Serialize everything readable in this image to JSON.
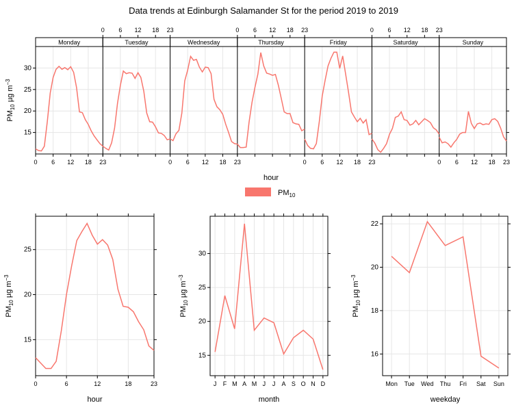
{
  "title": "Data trends at Edinburgh Salamander St for the period 2019 to 2019",
  "legend": {
    "label": "PM",
    "label_sub": "10",
    "color": "#F8766D"
  },
  "ylabel": {
    "prefix": "PM",
    "sub": "10",
    "unit": " µg m",
    "sup": "−3"
  },
  "colors": {
    "series": "#F8766D",
    "strip": "#ffffff",
    "grid": "#e6e6e6"
  },
  "chart_data": [
    {
      "id": "day-hour",
      "type": "line",
      "xlabel": "hour",
      "x_ticks": [
        0,
        6,
        12,
        18,
        23
      ],
      "x_range": [
        0,
        23
      ],
      "ylim": [
        10,
        35
      ],
      "y_ticks": [
        15,
        20,
        25,
        30
      ],
      "panels": [
        {
          "day": "Monday",
          "values": [
            11.2,
            10.8,
            10.7,
            11.8,
            17.5,
            24.2,
            27.8,
            29.7,
            30.4,
            29.7,
            30.1,
            29.6,
            30.3,
            29.0,
            25.5,
            19.8,
            19.6,
            18.0,
            16.9,
            15.4,
            14.2,
            13.3,
            12.4,
            11.8
          ]
        },
        {
          "day": "Tuesday",
          "values": [
            11.8,
            11.3,
            10.9,
            12.6,
            16.0,
            21.8,
            26.0,
            29.3,
            28.7,
            28.9,
            28.8,
            27.6,
            28.9,
            27.8,
            24.6,
            19.5,
            17.5,
            17.4,
            16.3,
            14.9,
            14.8,
            14.3,
            13.3,
            13.5
          ]
        },
        {
          "day": "Wednesday",
          "values": [
            13.5,
            13.1,
            14.7,
            15.5,
            19.5,
            27.0,
            29.5,
            32.7,
            31.8,
            32.0,
            30.2,
            29.1,
            30.2,
            30.1,
            28.7,
            22.7,
            21.0,
            20.3,
            19.2,
            16.9,
            15.0,
            12.9,
            12.4,
            12.3
          ]
        },
        {
          "day": "Thursday",
          "values": [
            12.3,
            11.5,
            11.5,
            11.6,
            17.5,
            22.0,
            25.5,
            28.6,
            33.6,
            30.5,
            28.8,
            28.6,
            28.3,
            28.5,
            26.0,
            22.9,
            19.8,
            19.4,
            19.4,
            17.3,
            17.0,
            16.9,
            15.4,
            15.8
          ]
        },
        {
          "day": "Friday",
          "values": [
            13.5,
            12.0,
            11.3,
            11.2,
            12.4,
            17.5,
            23.5,
            27.2,
            30.5,
            32.3,
            33.7,
            33.7,
            29.9,
            32.8,
            28.6,
            24.4,
            19.8,
            18.6,
            17.5,
            18.3,
            17.2,
            18.0,
            14.5,
            14.8
          ]
        },
        {
          "day": "Saturday",
          "values": [
            13.5,
            12.5,
            11.0,
            10.4,
            11.3,
            12.4,
            14.6,
            15.9,
            18.5,
            18.8,
            19.8,
            18.0,
            17.8,
            16.7,
            17.0,
            17.8,
            16.8,
            17.5,
            18.2,
            17.8,
            17.3,
            16.1,
            15.6,
            14.6
          ]
        },
        {
          "day": "Sunday",
          "values": [
            13.9,
            12.6,
            12.8,
            12.4,
            11.6,
            12.6,
            13.4,
            14.6,
            15.0,
            15.0,
            19.9,
            17.1,
            15.9,
            17.0,
            17.2,
            16.8,
            17.0,
            16.9,
            18.0,
            18.2,
            17.6,
            16.0,
            14.0,
            13.0
          ]
        }
      ]
    },
    {
      "id": "hour",
      "type": "line",
      "xlabel": "hour",
      "categories": [
        0,
        1,
        2,
        3,
        4,
        5,
        6,
        7,
        8,
        9,
        10,
        11,
        12,
        13,
        14,
        15,
        16,
        17,
        18,
        19,
        20,
        21,
        22,
        23
      ],
      "x_ticks": [
        0,
        6,
        12,
        18,
        23
      ],
      "x_range": [
        0,
        23
      ],
      "values": [
        13.0,
        12.4,
        11.8,
        11.8,
        12.6,
        16.0,
        20.0,
        23.2,
        26.0,
        27.0,
        27.9,
        26.6,
        25.6,
        26.1,
        25.5,
        23.9,
        20.6,
        18.7,
        18.6,
        18.1,
        17.0,
        16.1,
        14.3,
        13.8
      ],
      "ylim": [
        11.0,
        28.7
      ],
      "y_ticks": [
        15,
        20,
        25
      ]
    },
    {
      "id": "month",
      "type": "line",
      "xlabel": "month",
      "categories": [
        "J",
        "F",
        "M",
        "A",
        "M",
        "J",
        "J",
        "A",
        "S",
        "O",
        "N",
        "D"
      ],
      "values": [
        15.5,
        23.8,
        18.9,
        34.4,
        18.7,
        20.5,
        19.8,
        15.2,
        17.6,
        18.7,
        17.4,
        12.9
      ],
      "ylim": [
        12.0,
        35.5
      ],
      "y_ticks": [
        15,
        20,
        25,
        30
      ]
    },
    {
      "id": "weekday",
      "type": "line",
      "xlabel": "weekday",
      "categories": [
        "Mon",
        "Tue",
        "Wed",
        "Thu",
        "Fri",
        "Sat",
        "Sun"
      ],
      "values": [
        20.5,
        19.75,
        22.1,
        21.0,
        21.4,
        15.9,
        15.35
      ],
      "ylim": [
        15.0,
        22.35
      ],
      "y_ticks": [
        16,
        18,
        20,
        22
      ]
    }
  ]
}
